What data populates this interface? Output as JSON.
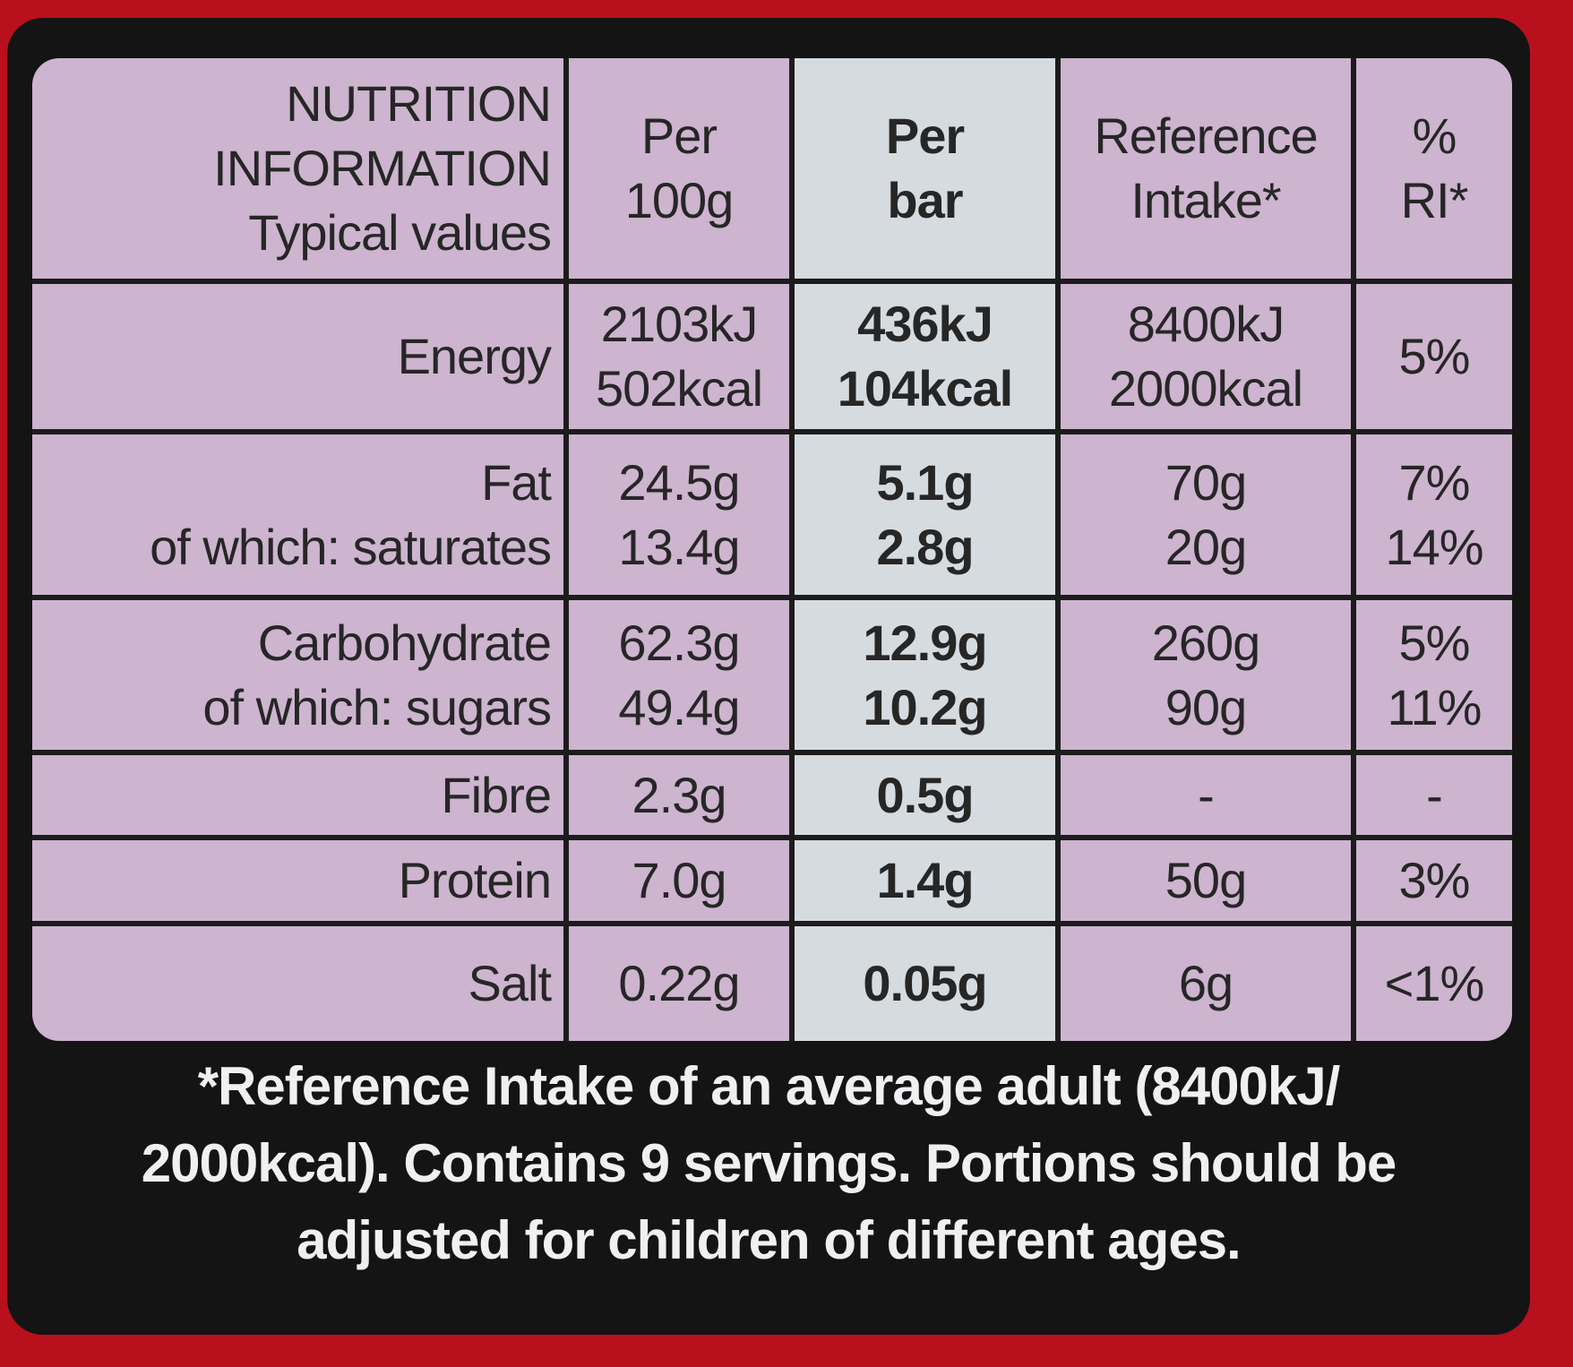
{
  "table": {
    "header": [
      [
        "NUTRITION",
        "INFORMATION",
        "Typical values"
      ],
      [
        "Per",
        "100g"
      ],
      [
        "Per",
        "bar"
      ],
      [
        "Reference",
        "Intake*"
      ],
      [
        "%",
        "RI*"
      ]
    ],
    "rows": [
      [
        [
          "Energy"
        ],
        [
          "2103kJ",
          "502kcal"
        ],
        [
          "436kJ",
          "104kcal"
        ],
        [
          "8400kJ",
          "2000kcal"
        ],
        [
          "5%"
        ]
      ],
      [
        [
          "Fat",
          "of which: saturates"
        ],
        [
          "24.5g",
          "13.4g"
        ],
        [
          "5.1g",
          "2.8g"
        ],
        [
          "70g",
          "20g"
        ],
        [
          "7%",
          "14%"
        ]
      ],
      [
        [
          "Carbohydrate",
          "of which: sugars"
        ],
        [
          "62.3g",
          "49.4g"
        ],
        [
          "12.9g",
          "10.2g"
        ],
        [
          "260g",
          "90g"
        ],
        [
          "5%",
          "11%"
        ]
      ],
      [
        [
          "Fibre"
        ],
        [
          "2.3g"
        ],
        [
          "0.5g"
        ],
        [
          "-"
        ],
        [
          "-"
        ]
      ],
      [
        [
          "Protein"
        ],
        [
          "7.0g"
        ],
        [
          "1.4g"
        ],
        [
          "50g"
        ],
        [
          "3%"
        ]
      ],
      [
        [
          "Salt"
        ],
        [
          "0.22g"
        ],
        [
          "0.05g"
        ],
        [
          "6g"
        ],
        [
          "<1%"
        ]
      ]
    ]
  },
  "footnote": [
    "*Reference Intake of an average adult (8400kJ/",
    "2000kcal). Contains 9 servings. Portions should be",
    "adjusted for children of different ages."
  ]
}
